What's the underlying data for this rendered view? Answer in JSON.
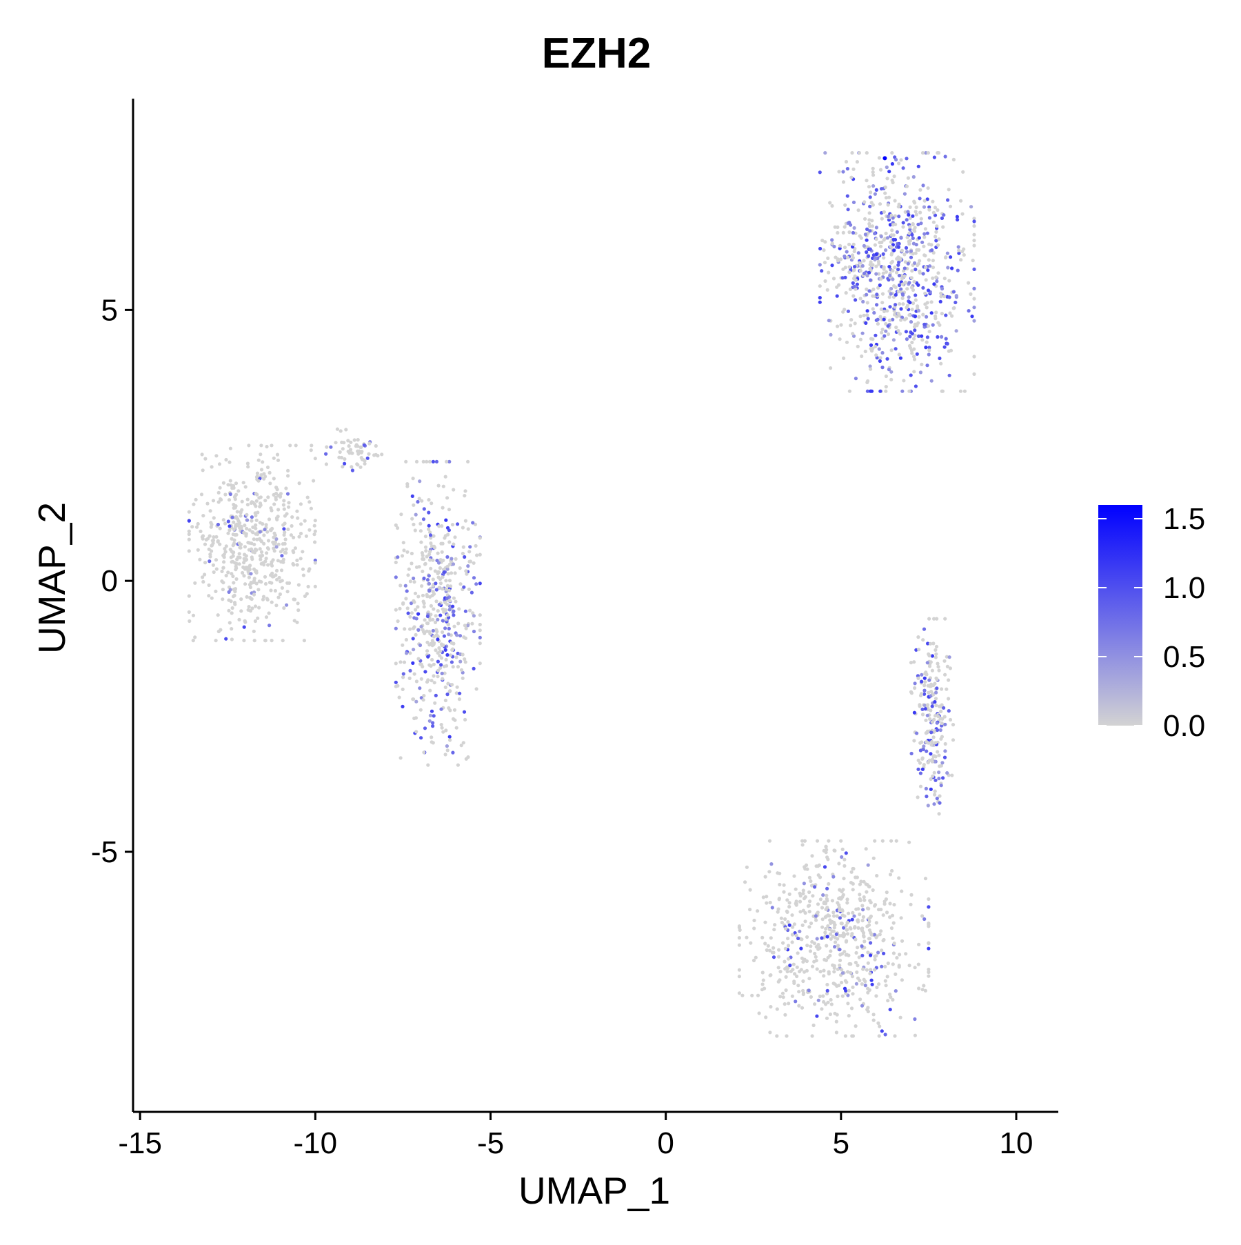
{
  "chart_data": {
    "type": "scatter",
    "title": "EZH2",
    "xlabel": "UMAP_1",
    "ylabel": "UMAP_2",
    "xlim": [
      -15.2,
      11.2
    ],
    "ylim": [
      -9.8,
      8.9
    ],
    "x_ticks": [
      -15,
      -10,
      -5,
      0,
      5,
      10
    ],
    "x_tick_labels": [
      "-15",
      "-10",
      "-5",
      "0",
      "5",
      "10"
    ],
    "y_ticks": [
      -5,
      0,
      5
    ],
    "y_tick_labels": [
      "-5",
      "0",
      "5"
    ],
    "grid": false,
    "legend_position": "right",
    "colorbar": {
      "min": 0.0,
      "max": 1.6,
      "ticks": [
        0.0,
        0.5,
        1.0,
        1.5
      ],
      "tick_labels": [
        "0.0",
        "0.5",
        "1.0",
        "1.5"
      ],
      "low_color": "#D3D3D3",
      "high_color": "#0000FF"
    },
    "clusters": [
      {
        "cx": 6.6,
        "cy": 5.7,
        "rx": 2.2,
        "ry": 2.2,
        "n": 800,
        "high_fraction": 0.45
      },
      {
        "cx": -11.8,
        "cy": 0.7,
        "rx": 1.8,
        "ry": 1.8,
        "n": 560,
        "high_fraction": 0.06
      },
      {
        "cx": -6.5,
        "cy": -0.6,
        "rx": 1.2,
        "ry": 2.8,
        "n": 520,
        "high_fraction": 0.32
      },
      {
        "cx": -8.9,
        "cy": 2.4,
        "rx": 0.8,
        "ry": 0.4,
        "n": 60,
        "high_fraction": 0.1
      },
      {
        "cx": 4.8,
        "cy": -6.6,
        "rx": 2.7,
        "ry": 1.8,
        "n": 650,
        "high_fraction": 0.12
      },
      {
        "cx": 7.6,
        "cy": -2.5,
        "rx": 0.6,
        "ry": 1.8,
        "n": 230,
        "high_fraction": 0.35
      }
    ],
    "highlighted_points": [
      {
        "x": 6.25,
        "y": 7.8,
        "value": 1.6
      }
    ]
  }
}
